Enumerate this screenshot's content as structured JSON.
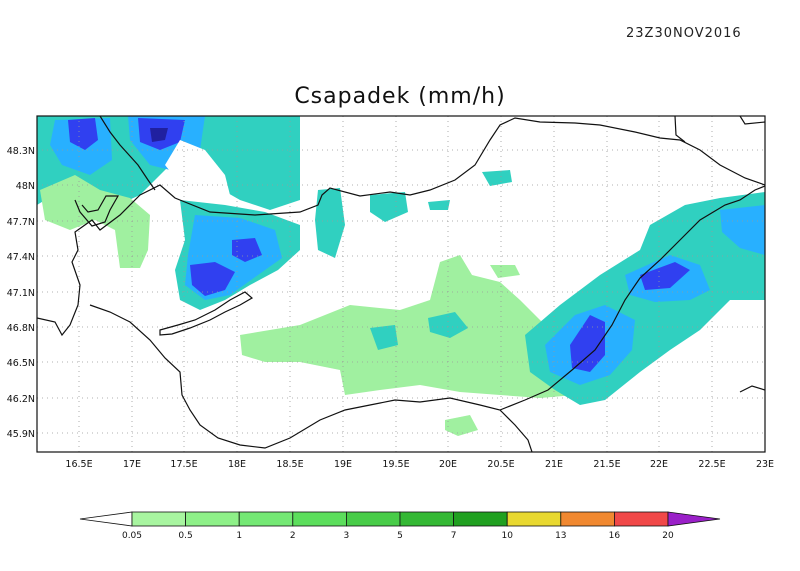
{
  "header": {
    "timestamp": "23Z30NOV2016",
    "title": "Csapadek (mm/h)"
  },
  "map": {
    "lon_ticks": [
      "16.5E",
      "17E",
      "17.5E",
      "18E",
      "18.5E",
      "19E",
      "19.5E",
      "20E",
      "20.5E",
      "21E",
      "21.5E",
      "22E",
      "22.5E",
      "23E"
    ],
    "lat_ticks": [
      "48.3N",
      "48N",
      "47.7N",
      "47.4N",
      "47.1N",
      "46.8N",
      "46.5N",
      "46.2N",
      "45.9N"
    ],
    "lon_range": [
      16.1,
      23.0
    ],
    "lat_range": [
      45.75,
      48.55
    ],
    "grid": "dotted"
  },
  "legend": {
    "levels": [
      "0.05",
      "0.5",
      "1",
      "2",
      "3",
      "5",
      "7",
      "10",
      "13",
      "16",
      "20"
    ],
    "colors": [
      "#ffffff",
      "#a8f5a0",
      "#8ef088",
      "#74e874",
      "#5cde5c",
      "#48cc48",
      "#34b834",
      "#20a020",
      "#e8d830",
      "#f08830",
      "#f04848",
      "#9a20c8"
    ],
    "field_colors": {
      "light_green": "#a0f0a0",
      "teal": "#30d0c0",
      "sky_blue": "#28b0ff",
      "blue": "#3040f0",
      "dark_blue": "#2020a0"
    }
  }
}
